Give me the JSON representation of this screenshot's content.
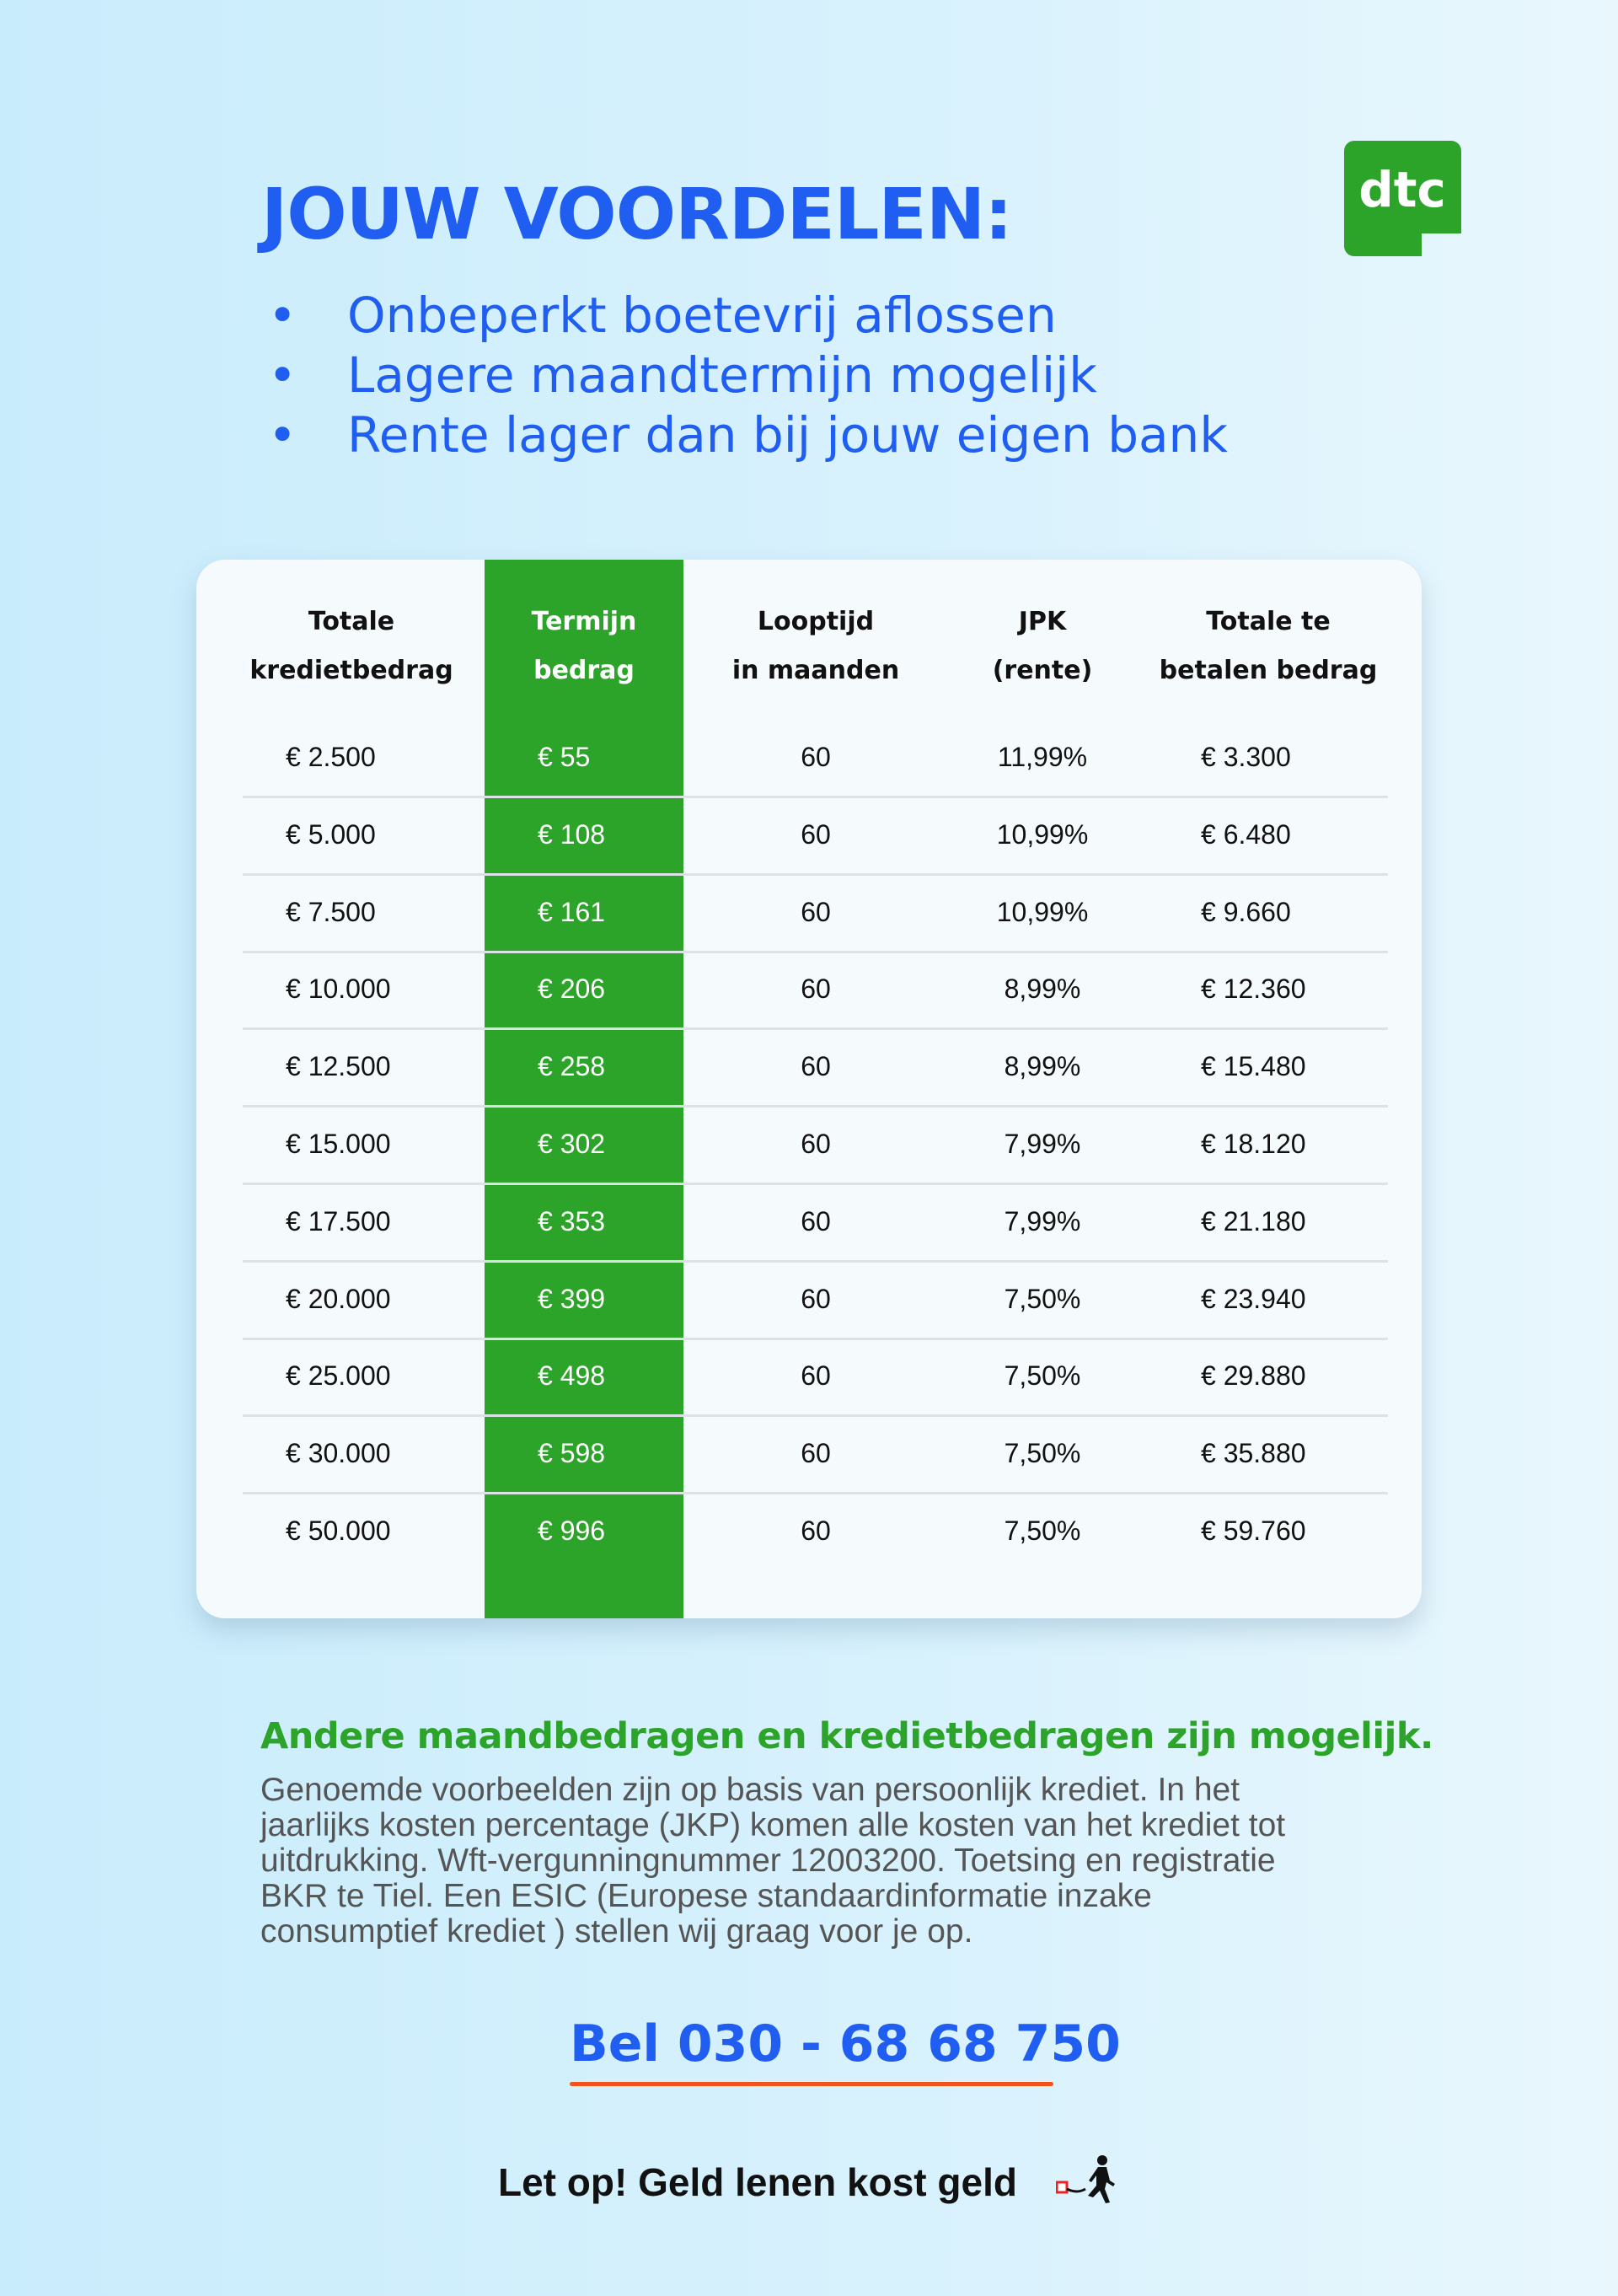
{
  "title": "JOUW VOORDELEN:",
  "bullets": [
    "Onbeperkt boetevrij aflossen",
    "Lagere maandtermijn mogelijk",
    "Rente lager dan bij jouw eigen bank"
  ],
  "logo": {
    "text": "dtc",
    "color": "#2ca42a"
  },
  "table": {
    "headers": [
      [
        "Totale",
        "kredietbedrag"
      ],
      [
        "Termijn",
        "bedrag"
      ],
      [
        "Looptijd",
        "in maanden"
      ],
      [
        "JPK",
        "(rente)"
      ],
      [
        "Totale te",
        "betalen bedrag"
      ]
    ],
    "rows": [
      [
        "€ 2.500",
        "€ 55",
        "60",
        "11,99%",
        "€ 3.300"
      ],
      [
        "€ 5.000",
        "€ 108",
        "60",
        "10,99%",
        "€ 6.480"
      ],
      [
        "€ 7.500",
        "€ 161",
        "60",
        "10,99%",
        "€ 9.660"
      ],
      [
        "€ 10.000",
        "€ 206",
        "60",
        "8,99%",
        "€ 12.360"
      ],
      [
        "€ 12.500",
        "€ 258",
        "60",
        "8,99%",
        "€ 15.480"
      ],
      [
        "€ 15.000",
        "€ 302",
        "60",
        "7,99%",
        "€ 18.120"
      ],
      [
        "€ 17.500",
        "€ 353",
        "60",
        "7,99%",
        "€ 21.180"
      ],
      [
        "€ 20.000",
        "€ 399",
        "60",
        "7,50%",
        "€ 23.940"
      ],
      [
        "€ 25.000",
        "€ 498",
        "60",
        "7,50%",
        "€ 29.880"
      ],
      [
        "€ 30.000",
        "€ 598",
        "60",
        "7,50%",
        "€ 35.880"
      ],
      [
        "€ 50.000",
        "€ 996",
        "60",
        "7,50%",
        "€ 59.760"
      ]
    ]
  },
  "subtitle": "Andere maandbedragen en kredietbedragen zijn mogelijk.",
  "disclaimer": [
    "Genoemde voorbeelden zijn op basis van persoonlijk krediet. In het",
    "jaarlijks kosten percentage (JKP) komen alle kosten van het krediet tot",
    "uitdrukking. Wft-vergunningnummer 12003200. Toetsing en registratie",
    "BKR te Tiel. Een ESIC (Europese standaardinformatie inzake",
    "consumptief krediet ) stellen wij graag voor je op."
  ],
  "phone_cta": "Bel 030 - 68 68 750",
  "footer": "Let op! Geld lenen kost geld",
  "colors": {
    "blue": "#1f5ef0",
    "green": "#2ca42a",
    "underline": "#f0531c"
  }
}
